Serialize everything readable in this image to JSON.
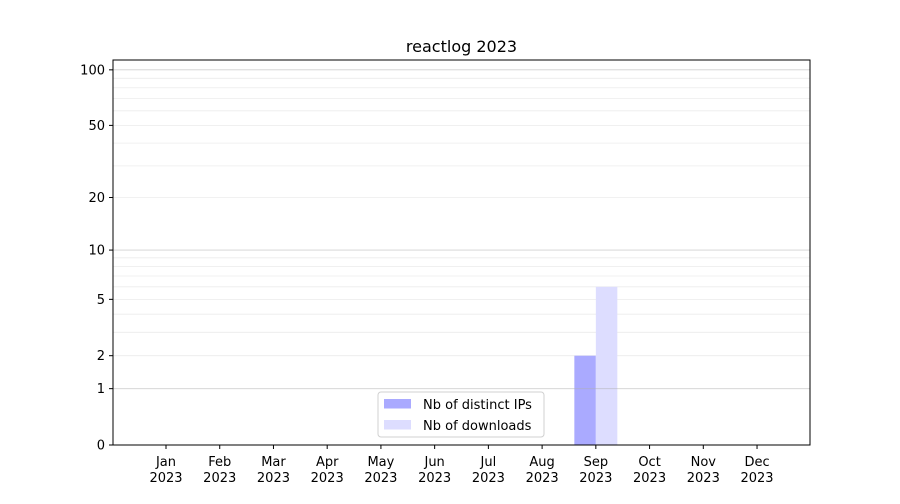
{
  "chart_data": {
    "type": "bar",
    "title": "reactlog 2023",
    "xlabel": "",
    "ylabel": "",
    "yscale": "log(1+y)",
    "ylim": [
      0,
      113
    ],
    "yticks": [
      0,
      1,
      2,
      5,
      10,
      20,
      50,
      100
    ],
    "grid": true,
    "legend_position": "lower-center",
    "categories": [
      [
        "Jan",
        "2023"
      ],
      [
        "Feb",
        "2023"
      ],
      [
        "Mar",
        "2023"
      ],
      [
        "Apr",
        "2023"
      ],
      [
        "May",
        "2023"
      ],
      [
        "Jun",
        "2023"
      ],
      [
        "Jul",
        "2023"
      ],
      [
        "Aug",
        "2023"
      ],
      [
        "Sep",
        "2023"
      ],
      [
        "Oct",
        "2023"
      ],
      [
        "Nov",
        "2023"
      ],
      [
        "Dec",
        "2023"
      ]
    ],
    "series": [
      {
        "name": "Nb of distinct IPs",
        "color": "#aaaaff",
        "values": [
          0,
          0,
          0,
          0,
          0,
          0,
          0,
          0,
          2,
          0,
          0,
          0
        ]
      },
      {
        "name": "Nb of downloads",
        "color": "#ddddff",
        "values": [
          0,
          0,
          0,
          0,
          0,
          0,
          0,
          0,
          6,
          0,
          0,
          0
        ]
      }
    ]
  }
}
